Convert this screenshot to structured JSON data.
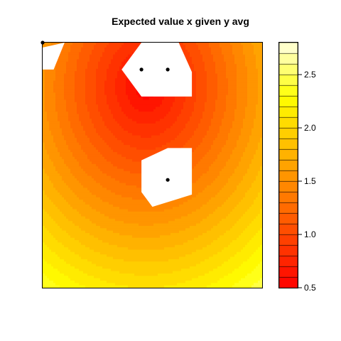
{
  "chart_data": {
    "type": "heatmap",
    "title": "Expected value x given y avg",
    "xlabel": "",
    "ylabel": "",
    "axes_ticks_shown": false,
    "colorbar": {
      "min": 0.5,
      "max": 2.8,
      "levels": 23,
      "ticks": [
        0.5,
        1.0,
        1.5,
        2.0,
        2.5
      ],
      "tick_labels": [
        "0.5",
        "1.0",
        "1.5",
        "2.0",
        "2.5"
      ],
      "palette": "heat",
      "low_color": "#FF0000",
      "high_color": "#FFFFE0"
    },
    "field": {
      "description_values": "approximate normalized field; values increase radially from the hotspot near top-center",
      "hotspot": {
        "x": 0.47,
        "y": 0.82,
        "value": 0.5
      },
      "far_corner_value": 2.8
    },
    "missing_regions": [
      [
        [
          0.0,
          0.98
        ],
        [
          0.1,
          1.0
        ],
        [
          0.05,
          0.89
        ],
        [
          0.0,
          0.89
        ]
      ],
      [
        [
          0.36,
          0.89
        ],
        [
          0.45,
          1.0
        ],
        [
          0.62,
          1.0
        ],
        [
          0.68,
          0.88
        ],
        [
          0.68,
          0.78
        ],
        [
          0.45,
          0.78
        ]
      ],
      [
        [
          0.45,
          0.52
        ],
        [
          0.57,
          0.57
        ],
        [
          0.68,
          0.57
        ],
        [
          0.68,
          0.38
        ],
        [
          0.5,
          0.33
        ],
        [
          0.45,
          0.39
        ]
      ]
    ],
    "points": [
      {
        "x": 0.0,
        "y": 1.0
      },
      {
        "x": 0.45,
        "y": 0.89
      },
      {
        "x": 0.57,
        "y": 0.89
      },
      {
        "x": 0.57,
        "y": 0.44
      }
    ]
  }
}
